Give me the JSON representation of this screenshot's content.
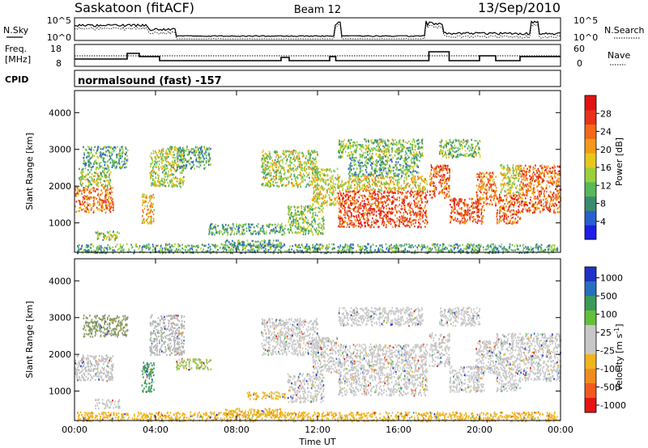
{
  "header": {
    "station": "Saskatoon (fitACF)",
    "beam": "Beam 12",
    "date": "13/Sep/2010"
  },
  "sky_panel": {
    "left_label": "N.Sky",
    "right_label": "N.Search",
    "ticks_left": [
      "10^5",
      "10^0"
    ],
    "ticks_right": [
      "10^5",
      "10^0"
    ]
  },
  "freq_panel": {
    "left_label_1": "Freq.",
    "left_label_2": "[MHz]",
    "right_label": "Nave",
    "ticks_left": [
      "18",
      "8"
    ],
    "ticks_right": [
      "60",
      "0"
    ]
  },
  "cpid": {
    "label": "CPID",
    "value": "normalsound (fast) -157"
  },
  "chart_data": [
    {
      "type": "heatmap",
      "name": "power",
      "ylabel": "Slant Range [km]",
      "yticks": [
        "1000",
        "2000",
        "3000",
        "4000"
      ],
      "ylim": [
        200,
        4600
      ],
      "xlim": [
        0,
        24
      ],
      "colorbar": {
        "label": "Power [dB]",
        "ticks": [
          "4",
          "8",
          "12",
          "16",
          "20",
          "24",
          "28"
        ],
        "colors": [
          "#1e1ee8",
          "#2a5fd0",
          "#3a8c6e",
          "#58b85a",
          "#9bd03c",
          "#e6c81c",
          "#f39a19",
          "#f26a18",
          "#e8321a",
          "#e01414"
        ]
      },
      "regions": [
        {
          "t0": 0.0,
          "t1": 1.9,
          "r0": 1300,
          "r1": 2000,
          "level": 0.75
        },
        {
          "t0": 0.2,
          "t1": 1.8,
          "r0": 2000,
          "r1": 2500,
          "level": 0.45
        },
        {
          "t0": 0.4,
          "t1": 2.6,
          "r0": 2500,
          "r1": 3100,
          "level": 0.3
        },
        {
          "t0": 1.0,
          "t1": 2.2,
          "r0": 550,
          "r1": 800,
          "level": 0.45
        },
        {
          "t0": 3.3,
          "t1": 3.9,
          "r0": 1000,
          "r1": 1800,
          "level": 0.6
        },
        {
          "t0": 3.7,
          "t1": 5.4,
          "r0": 2000,
          "r1": 3100,
          "level": 0.45
        },
        {
          "t0": 5.0,
          "t1": 6.7,
          "r0": 2500,
          "r1": 3100,
          "level": 0.3
        },
        {
          "t0": 7.4,
          "t1": 10.2,
          "r0": 350,
          "r1": 550,
          "level": 0.3
        },
        {
          "t0": 6.6,
          "t1": 10.4,
          "r0": 700,
          "r1": 1000,
          "level": 0.3
        },
        {
          "t0": 9.2,
          "t1": 12.0,
          "r0": 2000,
          "r1": 3000,
          "level": 0.45
        },
        {
          "t0": 10.5,
          "t1": 12.3,
          "r0": 700,
          "r1": 1500,
          "level": 0.4
        },
        {
          "t0": 11.7,
          "t1": 13.0,
          "r0": 1500,
          "r1": 2500,
          "level": 0.5
        },
        {
          "t0": 13.0,
          "t1": 17.4,
          "r0": 900,
          "r1": 1900,
          "level": 0.85
        },
        {
          "t0": 13.0,
          "t1": 17.4,
          "r0": 1900,
          "r1": 2300,
          "level": 0.55
        },
        {
          "t0": 13.0,
          "t1": 17.2,
          "r0": 2800,
          "r1": 3300,
          "level": 0.4
        },
        {
          "t0": 13.5,
          "t1": 17.0,
          "r0": 2300,
          "r1": 2800,
          "level": 0.3
        },
        {
          "t0": 17.5,
          "t1": 18.5,
          "r0": 1700,
          "r1": 2600,
          "level": 0.8
        },
        {
          "t0": 18.0,
          "t1": 20.0,
          "r0": 2800,
          "r1": 3300,
          "level": 0.4
        },
        {
          "t0": 18.5,
          "t1": 20.2,
          "r0": 1000,
          "r1": 1700,
          "level": 0.85
        },
        {
          "t0": 19.8,
          "t1": 20.8,
          "r0": 1500,
          "r1": 2400,
          "level": 0.75
        },
        {
          "t0": 20.8,
          "t1": 22.0,
          "r0": 1000,
          "r1": 1800,
          "level": 0.8
        },
        {
          "t0": 21.0,
          "t1": 22.0,
          "r0": 1800,
          "r1": 2600,
          "level": 0.5
        },
        {
          "t0": 22.0,
          "t1": 24.0,
          "r0": 1300,
          "r1": 2600,
          "level": 0.8
        },
        {
          "t0": 0.1,
          "t1": 23.9,
          "r0": 200,
          "r1": 450,
          "level": 0.3
        }
      ]
    },
    {
      "type": "heatmap",
      "name": "velocity",
      "ylabel": "Slant Range [km]",
      "yticks": [
        "1000",
        "2000",
        "3000",
        "4000"
      ],
      "ylim": [
        200,
        4600
      ],
      "xlim": [
        0,
        24
      ],
      "xticks": [
        "00:00",
        "04:00",
        "08:00",
        "12:00",
        "16:00",
        "20:00",
        "00:00"
      ],
      "xlabel": "Time UT",
      "colorbar": {
        "label_main": "Velocity",
        "label_unit": "[m s",
        "label_exp": "-1",
        "label_close": "]",
        "ticks": [
          "1000",
          "500",
          "100",
          "25",
          "-25",
          "-100",
          "-500",
          "-1000"
        ],
        "colors": [
          "#1e32c8",
          "#2a6ec0",
          "#3c9a5a",
          "#64c03c",
          "#c8c8c8",
          "#c8c8c8",
          "#f0b41e",
          "#f08c1e",
          "#f05a1e",
          "#e61414"
        ]
      },
      "regions": [
        {
          "t0": 0.0,
          "t1": 1.9,
          "r0": 1300,
          "r1": 2000,
          "color": "#c0c0c0"
        },
        {
          "t0": 0.4,
          "t1": 2.6,
          "r0": 2500,
          "r1": 3100,
          "color": "#8a9a64"
        },
        {
          "t0": 1.0,
          "t1": 2.2,
          "r0": 550,
          "r1": 800,
          "color": "#c8c8c8"
        },
        {
          "t0": 3.3,
          "t1": 3.9,
          "r0": 1000,
          "r1": 1800,
          "color": "#3c9a5a"
        },
        {
          "t0": 3.7,
          "t1": 5.4,
          "r0": 2000,
          "r1": 3100,
          "color": "#b4b4b4"
        },
        {
          "t0": 5.0,
          "t1": 6.7,
          "r0": 1600,
          "r1": 1900,
          "color": "#a0c050"
        },
        {
          "t0": 7.4,
          "t1": 10.2,
          "r0": 350,
          "r1": 550,
          "color": "#f0b41e"
        },
        {
          "t0": 8.5,
          "t1": 10.4,
          "r0": 800,
          "r1": 1000,
          "color": "#f0b41e"
        },
        {
          "t0": 9.2,
          "t1": 12.0,
          "r0": 2000,
          "r1": 3000,
          "color": "#c8c8c8"
        },
        {
          "t0": 10.5,
          "t1": 12.3,
          "r0": 700,
          "r1": 1500,
          "color": "#c8c8c8"
        },
        {
          "t0": 11.7,
          "t1": 13.0,
          "r0": 1500,
          "r1": 2500,
          "color": "#c8c8c8"
        },
        {
          "t0": 13.0,
          "t1": 17.4,
          "r0": 900,
          "r1": 2300,
          "color": "#c8c8c8"
        },
        {
          "t0": 13.0,
          "t1": 17.2,
          "r0": 2800,
          "r1": 3300,
          "color": "#c8c8c8"
        },
        {
          "t0": 17.5,
          "t1": 18.5,
          "r0": 1700,
          "r1": 2600,
          "color": "#c8c8c8"
        },
        {
          "t0": 18.0,
          "t1": 20.0,
          "r0": 2800,
          "r1": 3300,
          "color": "#c8c8c8"
        },
        {
          "t0": 18.5,
          "t1": 20.2,
          "r0": 1000,
          "r1": 1700,
          "color": "#c8c8c8"
        },
        {
          "t0": 19.8,
          "t1": 20.8,
          "r0": 1500,
          "r1": 2400,
          "color": "#c8c8c8"
        },
        {
          "t0": 20.8,
          "t1": 22.0,
          "r0": 1000,
          "r1": 2600,
          "color": "#c8c8c8"
        },
        {
          "t0": 22.0,
          "t1": 24.0,
          "r0": 1300,
          "r1": 2600,
          "color": "#c8c8c8"
        },
        {
          "t0": 0.1,
          "t1": 23.9,
          "r0": 200,
          "r1": 450,
          "color": "#f0b41e"
        }
      ]
    }
  ]
}
